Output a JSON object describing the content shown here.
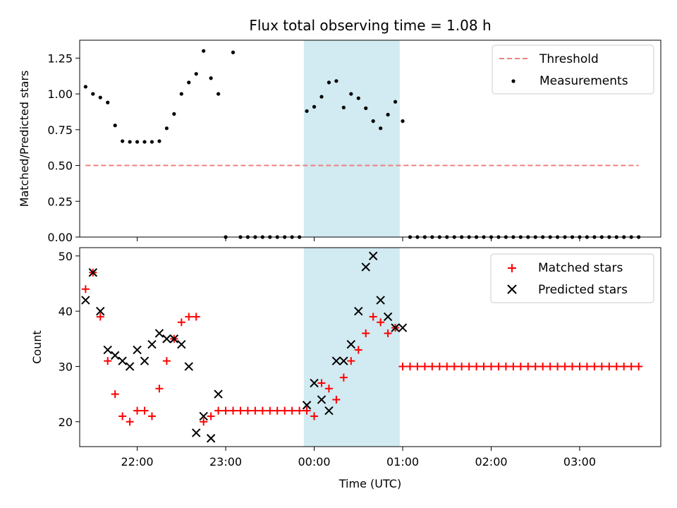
{
  "chart_data": [
    {
      "type": "scatter",
      "title": "Flux total observing time = 1.08 h",
      "xlabel": "",
      "ylabel": "Matched/Predicted stars",
      "ylim": [
        0,
        1.375
      ],
      "yticks": [
        0,
        0.25,
        0.5,
        0.75,
        1.0,
        1.25
      ],
      "ytick_labels": [
        "0.00",
        "0.25",
        "0.50",
        "0.75",
        "1.00",
        "1.25"
      ],
      "shaded_region": {
        "start": "23:53",
        "end": "00:58",
        "color": "#add8e6"
      },
      "legend_position": "top-right",
      "series": [
        {
          "name": "Threshold",
          "kind": "line",
          "style": "dashed",
          "color": "#f08080",
          "x": [
            "21:25",
            "03:40"
          ],
          "y": [
            0.5,
            0.5
          ]
        },
        {
          "name": "Measurements",
          "kind": "points",
          "color": "#000000",
          "x": [
            "21:25",
            "21:30",
            "21:35",
            "21:40",
            "21:45",
            "21:50",
            "21:55",
            "22:00",
            "22:05",
            "22:10",
            "22:15",
            "22:20",
            "22:25",
            "22:30",
            "22:35",
            "22:40",
            "22:45",
            "22:50",
            "22:55",
            "23:00",
            "23:05",
            "23:10",
            "23:15",
            "23:20",
            "23:25",
            "23:30",
            "23:35",
            "23:40",
            "23:45",
            "23:50",
            "23:55",
            "00:00",
            "00:05",
            "00:10",
            "00:15",
            "00:20",
            "00:25",
            "00:30",
            "00:35",
            "00:40",
            "00:45",
            "00:50",
            "00:55",
            "01:00",
            "01:05",
            "01:10",
            "01:15",
            "01:20",
            "01:25",
            "01:30",
            "01:35",
            "01:40",
            "01:45",
            "01:50",
            "01:55",
            "02:00",
            "02:05",
            "02:10",
            "02:15",
            "02:20",
            "02:25",
            "02:30",
            "02:35",
            "02:40",
            "02:45",
            "02:50",
            "02:55",
            "03:00",
            "03:05",
            "03:10",
            "03:15",
            "03:20",
            "03:25",
            "03:30",
            "03:35",
            "03:40"
          ],
          "y": [
            1.05,
            1.0,
            0.975,
            0.94,
            0.78,
            0.67,
            0.665,
            0.665,
            0.665,
            0.665,
            0.67,
            0.76,
            0.86,
            1.0,
            1.08,
            1.14,
            1.3,
            1.11,
            1.0,
            0.0,
            1.29,
            0.0,
            0.0,
            0.0,
            0.0,
            0.0,
            0.0,
            0.0,
            0.0,
            0.0,
            0.88,
            0.91,
            0.98,
            1.08,
            1.09,
            0.905,
            1.0,
            0.97,
            0.9,
            0.81,
            0.76,
            0.855,
            0.945,
            0.81,
            0.0,
            0.0,
            0.0,
            0.0,
            0.0,
            0.0,
            0.0,
            0.0,
            0.0,
            0.0,
            0.0,
            0.0,
            0.0,
            0.0,
            0.0,
            0.0,
            0.0,
            0.0,
            0.0,
            0.0,
            0.0,
            0.0,
            0.0,
            0.0,
            0.0,
            0.0,
            0.0,
            0.0,
            0.0,
            0.0,
            0.0,
            0.0
          ]
        }
      ]
    },
    {
      "type": "scatter",
      "title": "",
      "xlabel": "Time (UTC)",
      "ylabel": "Count",
      "ylim": [
        15.5,
        51.5
      ],
      "yticks": [
        20,
        30,
        40,
        50
      ],
      "ytick_labels": [
        "20",
        "30",
        "40",
        "50"
      ],
      "xticks": [
        "22:00",
        "23:00",
        "00:00",
        "01:00",
        "02:00",
        "03:00"
      ],
      "shaded_region": {
        "start": "23:53",
        "end": "00:58",
        "color": "#add8e6"
      },
      "legend_position": "top-right",
      "series": [
        {
          "name": "Matched stars",
          "marker": "plus",
          "color": "#ff0000",
          "x": [
            "21:25",
            "21:30",
            "21:35",
            "21:40",
            "21:45",
            "21:50",
            "21:55",
            "22:00",
            "22:05",
            "22:10",
            "22:15",
            "22:20",
            "22:25",
            "22:30",
            "22:35",
            "22:40",
            "22:45",
            "22:50",
            "22:55",
            "23:00",
            "23:05",
            "23:10",
            "23:15",
            "23:20",
            "23:25",
            "23:30",
            "23:35",
            "23:40",
            "23:45",
            "23:50",
            "23:55",
            "00:00",
            "00:05",
            "00:10",
            "00:15",
            "00:20",
            "00:25",
            "00:30",
            "00:35",
            "00:40",
            "00:45",
            "00:50",
            "00:55",
            "01:00",
            "01:05",
            "01:10",
            "01:15",
            "01:20",
            "01:25",
            "01:30",
            "01:35",
            "01:40",
            "01:45",
            "01:50",
            "01:55",
            "02:00",
            "02:05",
            "02:10",
            "02:15",
            "02:20",
            "02:25",
            "02:30",
            "02:35",
            "02:40",
            "02:45",
            "02:50",
            "02:55",
            "03:00",
            "03:05",
            "03:10",
            "03:15",
            "03:20",
            "03:25",
            "03:30",
            "03:35",
            "03:40"
          ],
          "y": [
            44,
            47,
            39,
            31,
            25,
            21,
            20,
            22,
            22,
            21,
            26,
            31,
            35,
            38,
            39,
            39,
            20,
            21,
            22,
            22,
            22,
            22,
            22,
            22,
            22,
            22,
            22,
            22,
            22,
            22,
            22,
            21,
            27,
            26,
            24,
            28,
            31,
            33,
            36,
            39,
            38,
            36,
            37,
            30,
            30,
            30,
            30,
            30,
            30,
            30,
            30,
            30,
            30,
            30,
            30,
            30,
            30,
            30,
            30,
            30,
            30,
            30,
            30,
            30,
            30,
            30,
            30,
            30,
            30,
            30,
            30,
            30,
            30,
            30,
            30,
            30
          ]
        },
        {
          "name": "Predicted stars",
          "marker": "x",
          "color": "#000000",
          "x": [
            "21:25",
            "21:30",
            "21:35",
            "21:40",
            "21:45",
            "21:50",
            "21:55",
            "22:00",
            "22:05",
            "22:10",
            "22:15",
            "22:20",
            "22:25",
            "22:30",
            "22:35",
            "22:40",
            "22:45",
            "22:50",
            "22:55",
            "23:55",
            "00:00",
            "00:05",
            "00:10",
            "00:15",
            "00:20",
            "00:25",
            "00:30",
            "00:35",
            "00:40",
            "00:45",
            "00:50",
            "00:55",
            "01:00"
          ],
          "y": [
            42,
            47,
            40,
            33,
            32,
            31,
            30,
            33,
            31,
            34,
            36,
            35,
            35,
            34,
            30,
            18,
            21,
            17,
            25,
            23,
            27,
            24,
            22,
            31,
            31,
            34,
            40,
            48,
            50,
            42,
            39,
            37,
            37
          ]
        }
      ]
    }
  ]
}
